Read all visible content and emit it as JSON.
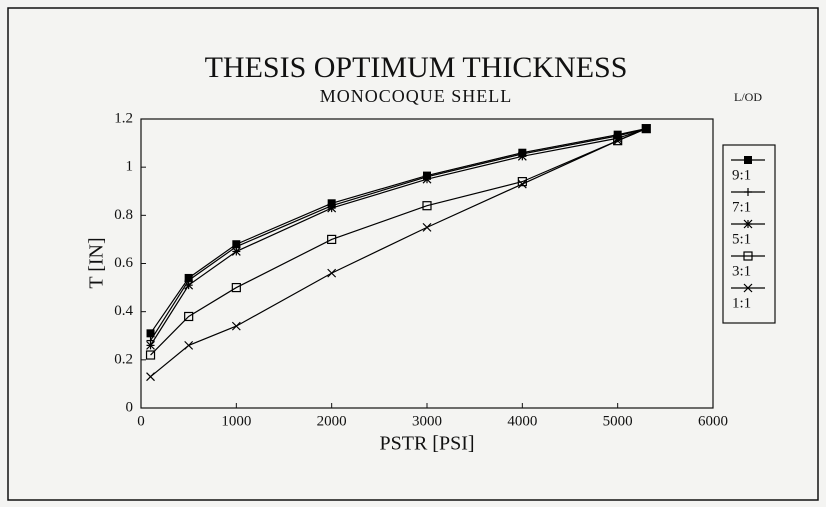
{
  "chart_data": {
    "type": "line",
    "title": "THESIS OPTIMUM THICKNESS",
    "subtitle": "MONOCOQUE SHELL",
    "x_label": "PSTR [PSI]",
    "y_label": "T [IN]",
    "legend_title": "L/OD",
    "legend": "right",
    "x": [
      100,
      500,
      1000,
      2000,
      3000,
      4000,
      5000,
      5300
    ],
    "series": [
      {
        "name": "9:1",
        "color": "#000000",
        "marker": "filled-square",
        "values": [
          0.31,
          0.54,
          0.68,
          0.85,
          0.965,
          1.06,
          1.135,
          1.16
        ]
      },
      {
        "name": "7:1",
        "color": "#000000",
        "marker": "plus",
        "values": [
          0.28,
          0.53,
          0.67,
          0.84,
          0.96,
          1.055,
          1.13,
          1.16
        ]
      },
      {
        "name": "5:1",
        "color": "#000000",
        "marker": "asterisk",
        "values": [
          0.26,
          0.51,
          0.65,
          0.83,
          0.95,
          1.045,
          1.12,
          1.16
        ]
      },
      {
        "name": "3:1",
        "color": "#000000",
        "marker": "open-square",
        "values": [
          0.22,
          0.38,
          0.5,
          0.7,
          0.84,
          0.94,
          1.11,
          1.16
        ]
      },
      {
        "name": "1:1",
        "color": "#000000",
        "marker": "cross",
        "values": [
          0.13,
          0.26,
          0.34,
          0.56,
          0.75,
          0.93,
          1.11,
          1.16
        ]
      }
    ],
    "xlim": [
      0,
      6000
    ],
    "xticks": [
      0,
      1000,
      2000,
      3000,
      4000,
      5000,
      6000
    ],
    "ylim": [
      0,
      1.2
    ],
    "yticks": [
      0,
      0.2,
      0.4,
      0.6,
      0.8,
      1,
      1.2
    ]
  }
}
